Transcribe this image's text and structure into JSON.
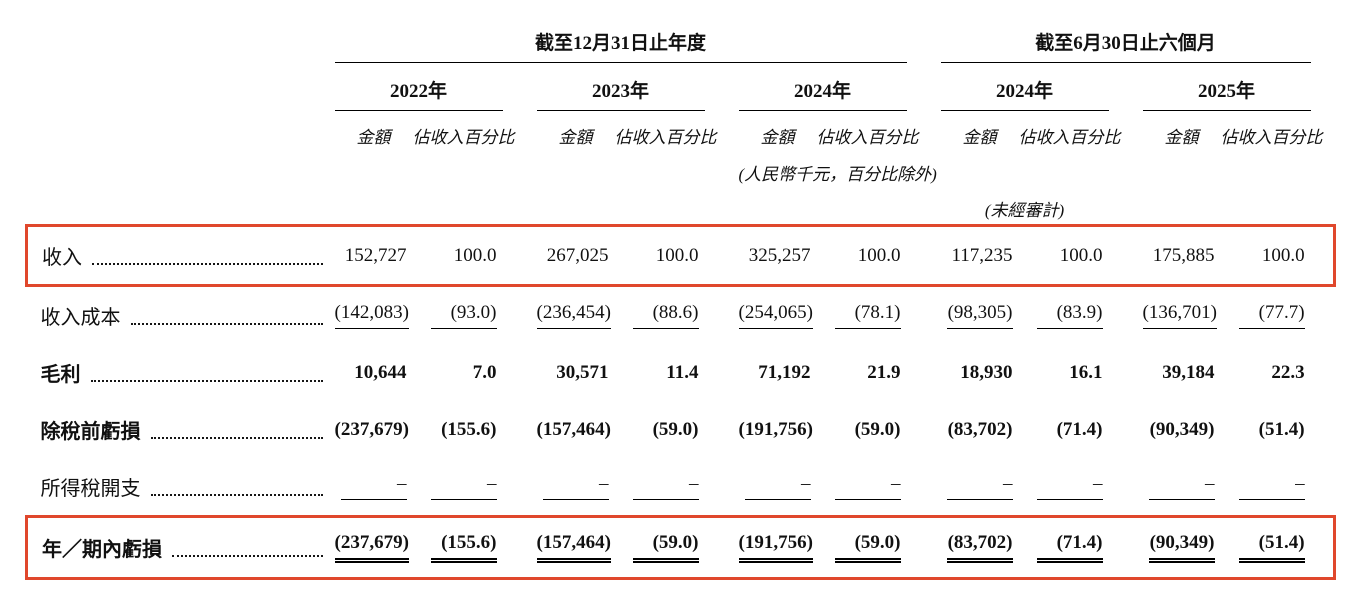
{
  "table": {
    "sections": [
      "截至12月31日止年度",
      "截至6月30日止六個月"
    ],
    "years": [
      "2022年",
      "2023年",
      "2024年",
      "2024年",
      "2025年"
    ],
    "col_headers": {
      "amount": "金額",
      "pct": "佔收入百分比"
    },
    "unit_note": "(人民幣千元，百分比除外)",
    "unaudited_note": "(未經審計)",
    "highlight_color": "#e0472c",
    "rows": [
      {
        "id": "revenue",
        "label": "收入",
        "bold": false,
        "highlight": true,
        "underline": "none",
        "values": [
          "152,727",
          "100.0",
          "267,025",
          "100.0",
          "325,257",
          "100.0",
          "117,235",
          "100.0",
          "175,885",
          "100.0"
        ]
      },
      {
        "id": "cost-of-revenue",
        "label": "收入成本",
        "bold": false,
        "highlight": false,
        "underline": "single",
        "values": [
          "(142,083)",
          "(93.0)",
          "(236,454)",
          "(88.6)",
          "(254,065)",
          "(78.1)",
          "(98,305)",
          "(83.9)",
          "(136,701)",
          "(77.7)"
        ]
      },
      {
        "id": "gross-profit",
        "label": "毛利",
        "bold": true,
        "highlight": false,
        "underline": "none",
        "values": [
          "10,644",
          "7.0",
          "30,571",
          "11.4",
          "71,192",
          "21.9",
          "18,930",
          "16.1",
          "39,184",
          "22.3"
        ]
      },
      {
        "id": "loss-before-tax",
        "label": "除稅前虧損",
        "bold": true,
        "highlight": false,
        "underline": "none",
        "values": [
          "(237,679)",
          "(155.6)",
          "(157,464)",
          "(59.0)",
          "(191,756)",
          "(59.0)",
          "(83,702)",
          "(71.4)",
          "(90,349)",
          "(51.4)"
        ]
      },
      {
        "id": "income-tax-expense",
        "label": "所得稅開支",
        "bold": false,
        "highlight": false,
        "underline": "single",
        "values": [
          "–",
          "–",
          "–",
          "–",
          "–",
          "–",
          "–",
          "–",
          "–",
          "–"
        ]
      },
      {
        "id": "loss-for-year-period",
        "label": "年／期內虧損",
        "bold": true,
        "highlight": true,
        "underline": "double",
        "values": [
          "(237,679)",
          "(155.6)",
          "(157,464)",
          "(59.0)",
          "(191,756)",
          "(59.0)",
          "(83,702)",
          "(71.4)",
          "(90,349)",
          "(51.4)"
        ]
      }
    ]
  }
}
